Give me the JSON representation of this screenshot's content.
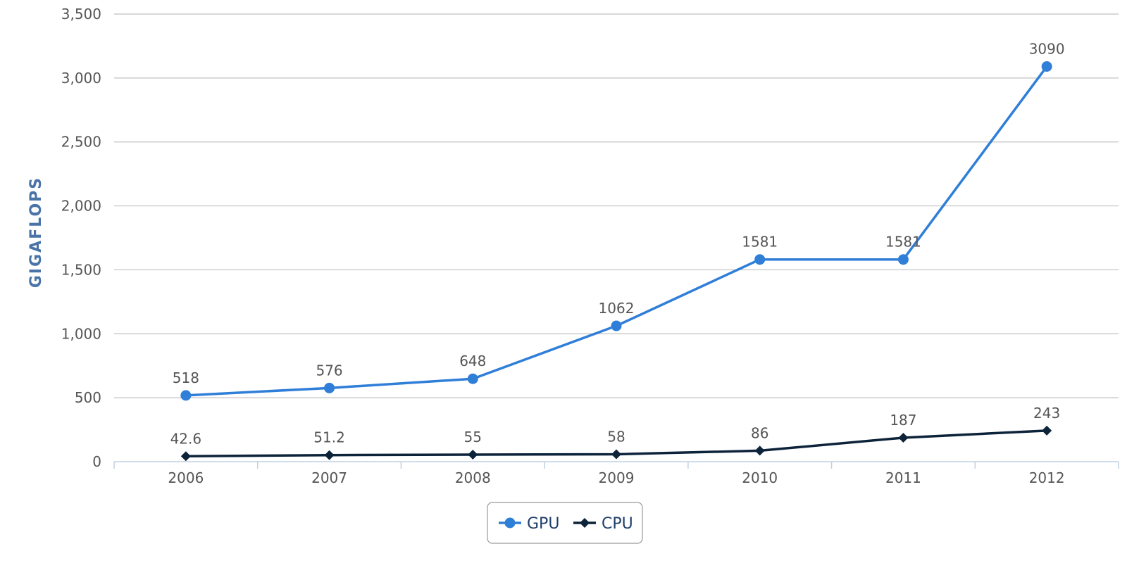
{
  "chart_data": {
    "type": "line",
    "categories": [
      "2006",
      "2007",
      "2008",
      "2009",
      "2010",
      "2011",
      "2012"
    ],
    "series": [
      {
        "name": "GPU",
        "values": [
          518,
          576,
          648,
          1062,
          1581,
          1581,
          3090
        ],
        "labels": [
          "518",
          "576",
          "648",
          "1062",
          "1581",
          "1581",
          "3090"
        ],
        "color": "#2f7ed8",
        "marker": "circle"
      },
      {
        "name": "CPU",
        "values": [
          42.6,
          51.2,
          55,
          58,
          86,
          187,
          243
        ],
        "labels": [
          "42.6",
          "51.2",
          "55",
          "58",
          "86",
          "187",
          "243"
        ],
        "color": "#0d233a",
        "marker": "diamond"
      }
    ],
    "title": "",
    "xlabel": "",
    "ylabel": "GIGAFLOPS",
    "ylim": [
      0,
      3500
    ],
    "yticks": [
      0,
      500,
      1000,
      1500,
      2000,
      2500,
      3000,
      3500
    ],
    "ytick_labels": [
      "0",
      "500",
      "1,000",
      "1,500",
      "2,000",
      "2,500",
      "3,000",
      "3,500"
    ],
    "grid": true,
    "legend_position": "bottom-center"
  },
  "colors": {
    "grid": "#c0c0c0",
    "axis": "#c0d0e0",
    "ylabel": "#4a74a8",
    "legend_border": "#999999"
  }
}
